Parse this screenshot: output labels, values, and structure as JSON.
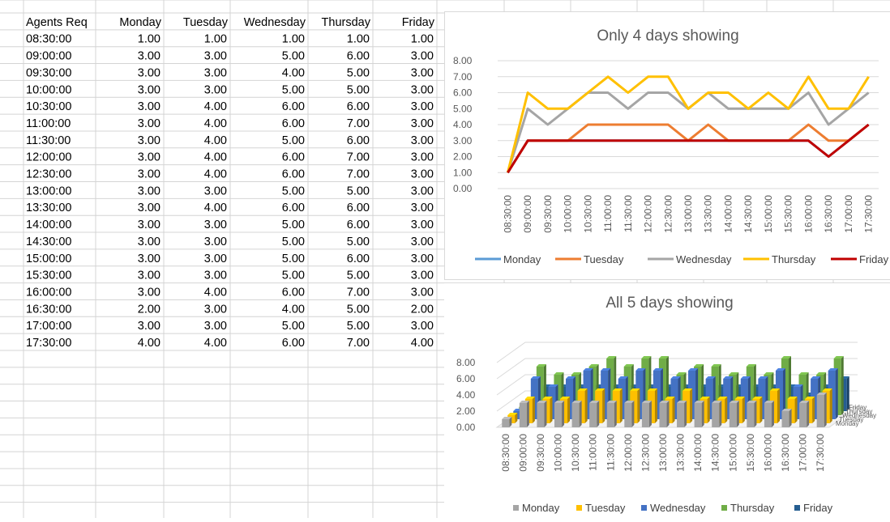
{
  "sheet": {
    "headers": [
      "Agents Req",
      "Monday",
      "Tuesday",
      "Wednesday",
      "Thursday",
      "Friday"
    ],
    "rows": [
      [
        "08:30:00",
        "1.00",
        "1.00",
        "1.00",
        "1.00",
        "1.00"
      ],
      [
        "09:00:00",
        "3.00",
        "3.00",
        "5.00",
        "6.00",
        "3.00"
      ],
      [
        "09:30:00",
        "3.00",
        "3.00",
        "4.00",
        "5.00",
        "3.00"
      ],
      [
        "10:00:00",
        "3.00",
        "3.00",
        "5.00",
        "5.00",
        "3.00"
      ],
      [
        "10:30:00",
        "3.00",
        "4.00",
        "6.00",
        "6.00",
        "3.00"
      ],
      [
        "11:00:00",
        "3.00",
        "4.00",
        "6.00",
        "7.00",
        "3.00"
      ],
      [
        "11:30:00",
        "3.00",
        "4.00",
        "5.00",
        "6.00",
        "3.00"
      ],
      [
        "12:00:00",
        "3.00",
        "4.00",
        "6.00",
        "7.00",
        "3.00"
      ],
      [
        "12:30:00",
        "3.00",
        "4.00",
        "6.00",
        "7.00",
        "3.00"
      ],
      [
        "13:00:00",
        "3.00",
        "3.00",
        "5.00",
        "5.00",
        "3.00"
      ],
      [
        "13:30:00",
        "3.00",
        "4.00",
        "6.00",
        "6.00",
        "3.00"
      ],
      [
        "14:00:00",
        "3.00",
        "3.00",
        "5.00",
        "6.00",
        "3.00"
      ],
      [
        "14:30:00",
        "3.00",
        "3.00",
        "5.00",
        "5.00",
        "3.00"
      ],
      [
        "15:00:00",
        "3.00",
        "3.00",
        "5.00",
        "6.00",
        "3.00"
      ],
      [
        "15:30:00",
        "3.00",
        "3.00",
        "5.00",
        "5.00",
        "3.00"
      ],
      [
        "16:00:00",
        "3.00",
        "4.00",
        "6.00",
        "7.00",
        "3.00"
      ],
      [
        "16:30:00",
        "2.00",
        "3.00",
        "4.00",
        "5.00",
        "2.00"
      ],
      [
        "17:00:00",
        "3.00",
        "3.00",
        "5.00",
        "5.00",
        "3.00"
      ],
      [
        "17:30:00",
        "4.00",
        "4.00",
        "6.00",
        "7.00",
        "4.00"
      ]
    ]
  },
  "chart_data": [
    {
      "type": "line",
      "title": "Only 4 days showing",
      "categories": [
        "08:30:00",
        "09:00:00",
        "09:30:00",
        "10:00:00",
        "10:30:00",
        "11:00:00",
        "11:30:00",
        "12:00:00",
        "12:30:00",
        "13:00:00",
        "13:30:00",
        "14:00:00",
        "14:30:00",
        "15:00:00",
        "15:30:00",
        "16:00:00",
        "16:30:00",
        "17:00:00",
        "17:30:00"
      ],
      "ylim": [
        0,
        8
      ],
      "yticks": [
        "0.00",
        "1.00",
        "2.00",
        "3.00",
        "4.00",
        "5.00",
        "6.00",
        "7.00",
        "8.00"
      ],
      "grid": true,
      "legend": "bottom",
      "series": [
        {
          "name": "Monday",
          "color": "#5b9bd5",
          "values": [
            1,
            3,
            3,
            3,
            3,
            3,
            3,
            3,
            3,
            3,
            3,
            3,
            3,
            3,
            3,
            3,
            2,
            3,
            4
          ]
        },
        {
          "name": "Tuesday",
          "color": "#ed7d31",
          "values": [
            1,
            3,
            3,
            3,
            4,
            4,
            4,
            4,
            4,
            3,
            4,
            3,
            3,
            3,
            3,
            4,
            3,
            3,
            4
          ]
        },
        {
          "name": "Wednesday",
          "color": "#a5a5a5",
          "values": [
            1,
            5,
            4,
            5,
            6,
            6,
            5,
            6,
            6,
            5,
            6,
            5,
            5,
            5,
            5,
            6,
            4,
            5,
            6
          ]
        },
        {
          "name": "Thursday",
          "color": "#ffc000",
          "values": [
            1,
            6,
            5,
            5,
            6,
            7,
            6,
            7,
            7,
            5,
            6,
            6,
            5,
            6,
            5,
            7,
            5,
            5,
            7
          ]
        },
        {
          "name": "Friday",
          "color": "#c00000",
          "values": [
            1,
            3,
            3,
            3,
            3,
            3,
            3,
            3,
            3,
            3,
            3,
            3,
            3,
            3,
            3,
            3,
            2,
            3,
            4
          ]
        }
      ]
    },
    {
      "type": "bar",
      "title": "All 5 days showing",
      "categories": [
        "08:30:00",
        "09:00:00",
        "09:30:00",
        "10:00:00",
        "10:30:00",
        "11:00:00",
        "11:30:00",
        "12:00:00",
        "12:30:00",
        "13:00:00",
        "13:30:00",
        "14:00:00",
        "14:30:00",
        "15:00:00",
        "15:30:00",
        "16:00:00",
        "16:30:00",
        "17:00:00",
        "17:30:00"
      ],
      "ylim": [
        0,
        8
      ],
      "yticks": [
        "0.00",
        "2.00",
        "4.00",
        "6.00",
        "8.00"
      ],
      "legend": "bottom",
      "depth_labels": [
        "Monday",
        "Tuesday",
        "Wednesday",
        "Thursday",
        "Friday"
      ],
      "series": [
        {
          "name": "Monday",
          "color": "#a5a5a5",
          "values": [
            1,
            3,
            3,
            3,
            3,
            3,
            3,
            3,
            3,
            3,
            3,
            3,
            3,
            3,
            3,
            3,
            2,
            3,
            4
          ]
        },
        {
          "name": "Tuesday",
          "color": "#ffc000",
          "values": [
            1,
            3,
            3,
            3,
            4,
            4,
            4,
            4,
            4,
            3,
            4,
            3,
            3,
            3,
            3,
            4,
            3,
            3,
            4
          ]
        },
        {
          "name": "Wednesday",
          "color": "#4472c4",
          "values": [
            1,
            5,
            4,
            5,
            6,
            6,
            5,
            6,
            6,
            5,
            6,
            5,
            5,
            5,
            5,
            6,
            4,
            5,
            6
          ]
        },
        {
          "name": "Thursday",
          "color": "#70ad47",
          "values": [
            1,
            6,
            5,
            5,
            6,
            7,
            6,
            7,
            7,
            5,
            6,
            6,
            5,
            6,
            5,
            7,
            5,
            5,
            7
          ]
        },
        {
          "name": "Friday",
          "color": "#255e91",
          "values": [
            1,
            3,
            3,
            3,
            3,
            3,
            3,
            3,
            3,
            3,
            3,
            3,
            3,
            3,
            3,
            3,
            2,
            3,
            4
          ]
        }
      ]
    }
  ]
}
